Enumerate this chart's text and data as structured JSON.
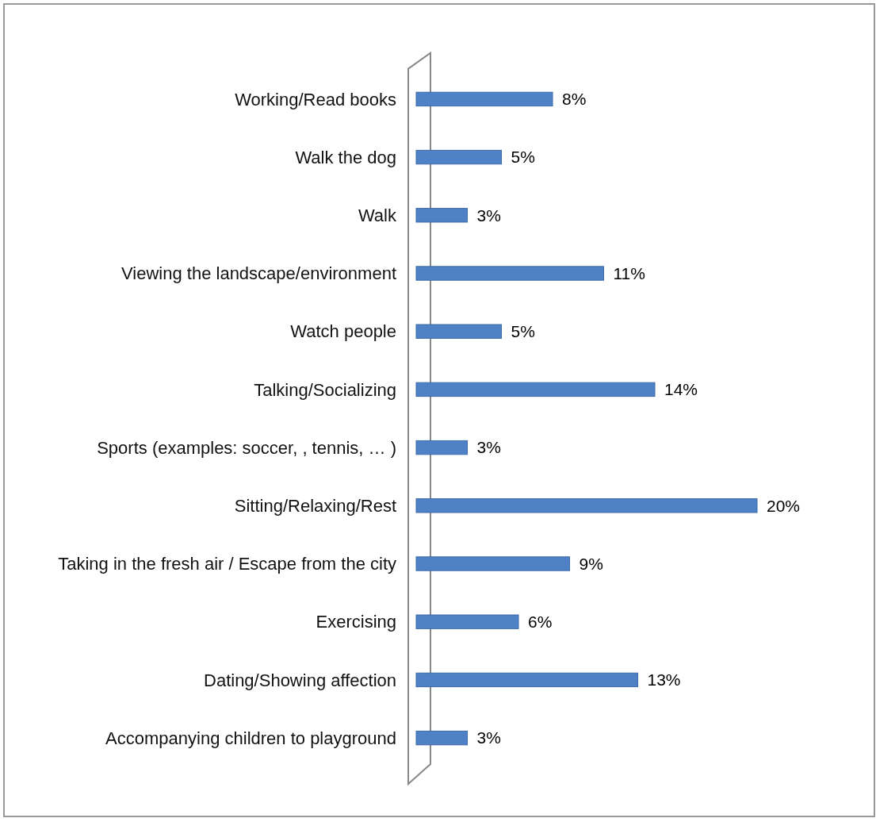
{
  "chart_data": {
    "type": "bar",
    "orientation": "horizontal",
    "categories": [
      "Working/Read books",
      "Walk the dog",
      "Walk ",
      "Viewing the landscape/environment",
      "Watch people ",
      "Talking/Socializing",
      "Sports (examples: soccer, , tennis, … )",
      "Sitting/Relaxing/Rest",
      "Taking in the fresh air / Escape from the city",
      "Exercising ",
      "Dating/Showing affection",
      "Accompanying children to playground"
    ],
    "values": [
      8,
      5,
      3,
      11,
      5,
      14,
      3,
      20,
      9,
      6,
      13,
      3
    ],
    "value_labels": [
      "8%",
      "5%",
      "3%",
      "11%",
      "5%",
      "14%",
      "3%",
      "20%",
      "9%",
      "6%",
      "13%",
      "3%"
    ],
    "color": "#4f81c7"
  }
}
